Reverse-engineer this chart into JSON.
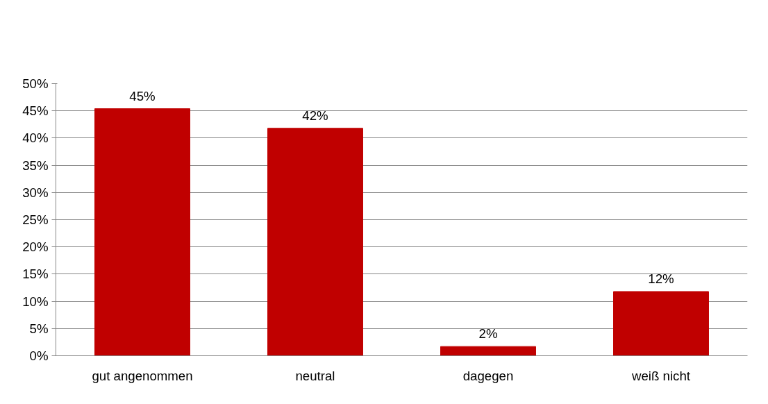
{
  "chart_data": {
    "type": "bar",
    "categories": [
      "gut angenommen",
      "neutral",
      "dagegen",
      "weiß nicht"
    ],
    "values": [
      45.4,
      41.8,
      1.7,
      11.8
    ],
    "value_labels": [
      "45%",
      "42%",
      "2%",
      "12%"
    ],
    "color": "#c00000",
    "ylim": [
      0,
      50
    ],
    "yticks": [
      {
        "value": 0,
        "label": "0%"
      },
      {
        "value": 5,
        "label": "5%"
      },
      {
        "value": 10,
        "label": "10%"
      },
      {
        "value": 15,
        "label": "15%"
      },
      {
        "value": 20,
        "label": "20%"
      },
      {
        "value": 25,
        "label": "25%"
      },
      {
        "value": 30,
        "label": "30%"
      },
      {
        "value": 35,
        "label": "35%"
      },
      {
        "value": 40,
        "label": "40%"
      },
      {
        "value": 45,
        "label": "45%"
      },
      {
        "value": 50,
        "label": "50%"
      }
    ],
    "grid": "y"
  }
}
